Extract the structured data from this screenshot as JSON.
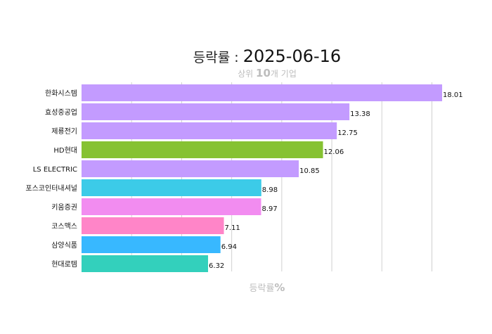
{
  "chart_data": {
    "type": "bar",
    "orientation": "horizontal",
    "title_prefix": "등락률 : ",
    "title": "2025-06-16",
    "subtitle_pre": "상위 ",
    "subtitle_num": "10",
    "subtitle_post": "개 기업",
    "xlabel_text": "등락률",
    "xlabel_unit": "%",
    "categories": [
      "한화시스템",
      "효성중공업",
      "제룡전기",
      "HD현대",
      "LS ELECTRIC",
      "포스코인터내셔널",
      "키움증권",
      "코스맥스",
      "삼양식품",
      "현대로템"
    ],
    "values": [
      18.01,
      13.38,
      12.75,
      12.06,
      10.85,
      8.98,
      8.97,
      7.11,
      6.94,
      6.32
    ],
    "value_labels": [
      "18.01",
      "13.38",
      "12.75",
      "12.06",
      "10.85",
      "8.98",
      "8.97",
      "7.11",
      "6.94",
      "6.32"
    ],
    "colors": [
      "#c39bff",
      "#c39bff",
      "#c39bff",
      "#86c232",
      "#c39bff",
      "#3ccbe8",
      "#f28cf0",
      "#ff85c8",
      "#38b8ff",
      "#33d0bc"
    ],
    "xlim": [
      0,
      18.5
    ],
    "grid": true
  }
}
